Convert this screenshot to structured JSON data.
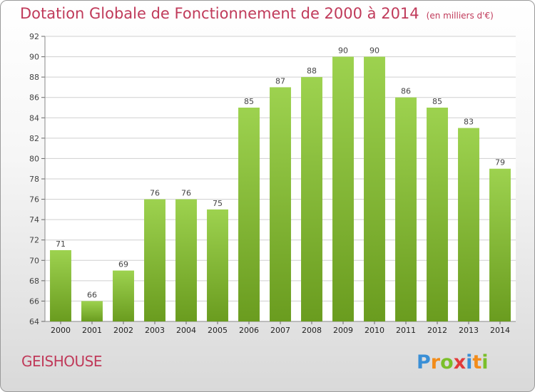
{
  "header": {
    "title": "Dotation Globale de Fonctionnement de 2000 à 2014",
    "unit": "(en milliers d'€)"
  },
  "footer": {
    "commune": "GEISHOUSE",
    "logo": "Proxiti"
  },
  "colors": {
    "title": "#c03a5a",
    "bar_top": "#9dd24f",
    "bar_bottom": "#6a9c1f",
    "grid": "#cfcfcf"
  },
  "chart_data": {
    "type": "bar",
    "title": "Dotation Globale de Fonctionnement de 2000 à 2014",
    "subtitle": "(en milliers d'€)",
    "categories": [
      "2000",
      "2001",
      "2002",
      "2003",
      "2004",
      "2005",
      "2006",
      "2007",
      "2008",
      "2009",
      "2010",
      "2011",
      "2012",
      "2013",
      "2014"
    ],
    "values": [
      71,
      66,
      69,
      76,
      76,
      75,
      85,
      87,
      88,
      90,
      90,
      86,
      85,
      83,
      79
    ],
    "ylim": [
      64,
      92
    ],
    "yticks": [
      64,
      66,
      68,
      70,
      72,
      74,
      76,
      78,
      80,
      82,
      84,
      86,
      88,
      90,
      92
    ],
    "grid": true,
    "data_labels": true,
    "xlabel": "",
    "ylabel": ""
  }
}
